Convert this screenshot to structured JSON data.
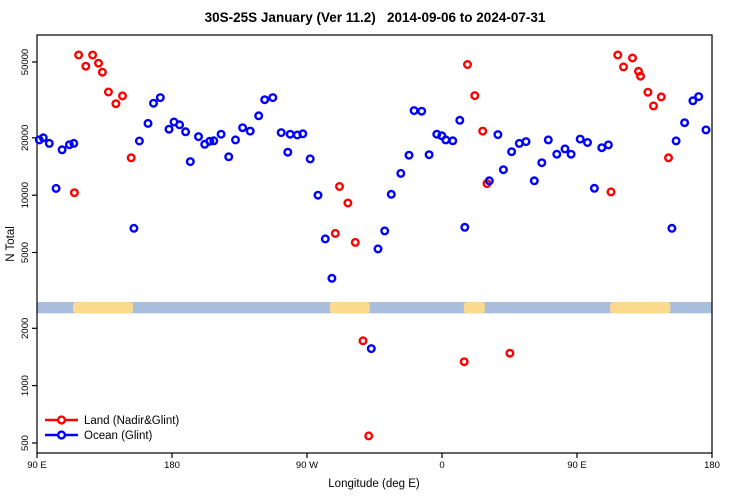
{
  "chart_data": {
    "type": "scatter",
    "title": "30S-25S January (Ver 11.2)   2014-09-06 to 2024-07-31",
    "xlabel": "Longitude (deg E)",
    "ylabel": "N Total",
    "x_axis": {
      "range": [
        90,
        540
      ],
      "ticks": [
        90,
        180,
        270,
        360,
        450,
        540
      ],
      "labels": [
        "90 E",
        "180",
        "90 W",
        "0",
        "90 E",
        "180"
      ]
    },
    "y_axis": {
      "scale": "log",
      "range": [
        443,
        69300
      ],
      "ticks": [
        500,
        1000,
        2000,
        5000,
        10000,
        20000,
        50000
      ],
      "labels": [
        "500",
        "1000",
        "2000",
        "5000",
        "10000",
        "20000",
        "50000"
      ]
    },
    "grid": false,
    "legend_position": "bottom-left-inside",
    "series": [
      {
        "name": "Land (Nadir&Glint)",
        "color": "#ff0000",
        "points": [
          [
            117.7,
            54400
          ],
          [
            127.1,
            54400
          ],
          [
            122.5,
            47500
          ],
          [
            131.0,
            49300
          ],
          [
            133.6,
            44200
          ],
          [
            137.6,
            34800
          ],
          [
            147.0,
            33200
          ],
          [
            142.6,
            30200
          ],
          [
            152.8,
            15700
          ],
          [
            114.9,
            10300
          ],
          [
            291.7,
            11100
          ],
          [
            297.3,
            9100
          ],
          [
            288.9,
            6300
          ],
          [
            302.2,
            5650
          ],
          [
            377.0,
            48500
          ],
          [
            381.9,
            33300
          ],
          [
            387.1,
            21700
          ],
          [
            390.0,
            11500
          ],
          [
            477.2,
            54400
          ],
          [
            481.0,
            47100
          ],
          [
            487.0,
            52500
          ],
          [
            491.0,
            44700
          ],
          [
            492.3,
            42100
          ],
          [
            497.3,
            34700
          ],
          [
            501.0,
            29400
          ],
          [
            506.2,
            32800
          ],
          [
            511.0,
            15700
          ],
          [
            472.7,
            10400
          ],
          [
            307.3,
            1720
          ],
          [
            374.8,
            1335
          ],
          [
            405.3,
            1480
          ],
          [
            311.1,
            545
          ]
        ]
      },
      {
        "name": "Ocean (Glint)",
        "color": "#0000ff",
        "points": [
          [
            91.5,
            19500
          ],
          [
            94.2,
            20000
          ],
          [
            98.2,
            18700
          ],
          [
            102.7,
            10850
          ],
          [
            106.7,
            17300
          ],
          [
            111.6,
            18400
          ],
          [
            114.5,
            18700
          ],
          [
            154.6,
            6700
          ],
          [
            158.3,
            19250
          ],
          [
            164.0,
            23800
          ],
          [
            167.7,
            30400
          ],
          [
            172.2,
            32500
          ],
          [
            178.0,
            22200
          ],
          [
            181.3,
            24200
          ],
          [
            185.1,
            23400
          ],
          [
            189.1,
            21500
          ],
          [
            192.2,
            15000
          ],
          [
            197.7,
            20300
          ],
          [
            201.8,
            18500
          ],
          [
            205.2,
            19200
          ],
          [
            207.9,
            19300
          ],
          [
            212.7,
            20900
          ],
          [
            217.8,
            15900
          ],
          [
            222.3,
            19500
          ],
          [
            227.1,
            22600
          ],
          [
            232.1,
            21700
          ],
          [
            237.8,
            26100
          ],
          [
            241.8,
            31700
          ],
          [
            247.2,
            32500
          ],
          [
            252.8,
            21300
          ],
          [
            257.2,
            16800
          ],
          [
            258.8,
            20900
          ],
          [
            263.5,
            20700
          ],
          [
            267.2,
            21000
          ],
          [
            272.1,
            15500
          ],
          [
            277.3,
            10000
          ],
          [
            282.2,
            5890
          ],
          [
            286.6,
            3660
          ],
          [
            312.9,
            1565
          ],
          [
            317.3,
            5220
          ],
          [
            321.8,
            6490
          ],
          [
            326.2,
            10100
          ],
          [
            332.5,
            13000
          ],
          [
            338.0,
            16200
          ],
          [
            341.4,
            27800
          ],
          [
            346.5,
            27600
          ],
          [
            351.4,
            16300
          ],
          [
            356.5,
            20900
          ],
          [
            359.9,
            20500
          ],
          [
            362.5,
            19500
          ],
          [
            367.2,
            19300
          ],
          [
            371.9,
            24700
          ],
          [
            375.2,
            6780
          ],
          [
            391.5,
            11900
          ],
          [
            397.3,
            20800
          ],
          [
            400.9,
            13600
          ],
          [
            406.4,
            16900
          ],
          [
            411.5,
            18700
          ],
          [
            416.0,
            19100
          ],
          [
            421.5,
            11900
          ],
          [
            426.5,
            14800
          ],
          [
            430.9,
            19500
          ],
          [
            436.5,
            16400
          ],
          [
            442.0,
            17500
          ],
          [
            446.1,
            16400
          ],
          [
            452.1,
            19700
          ],
          [
            457.0,
            18900
          ],
          [
            461.6,
            10870
          ],
          [
            466.5,
            17750
          ],
          [
            470.9,
            18360
          ],
          [
            513.3,
            6700
          ],
          [
            516.1,
            19260
          ],
          [
            521.7,
            24000
          ],
          [
            527.3,
            31300
          ],
          [
            531.1,
            32900
          ],
          [
            536.0,
            22000
          ]
        ]
      }
    ],
    "map_band": {
      "n_range": [
        2400,
        2750
      ],
      "ocean_color": "#a9bedc",
      "land_color": "#fbd98d",
      "land_segments_lon": [
        [
          114.0,
          154.1
        ],
        [
          285.1,
          311.8
        ],
        [
          374.6,
          388.6
        ],
        [
          472.1,
          512.2
        ]
      ]
    }
  },
  "legend": {
    "items": [
      {
        "label": "Land (Nadir&Glint)",
        "color": "#ff0000"
      },
      {
        "label": "Ocean (Glint)",
        "color": "#0000ff"
      }
    ]
  }
}
